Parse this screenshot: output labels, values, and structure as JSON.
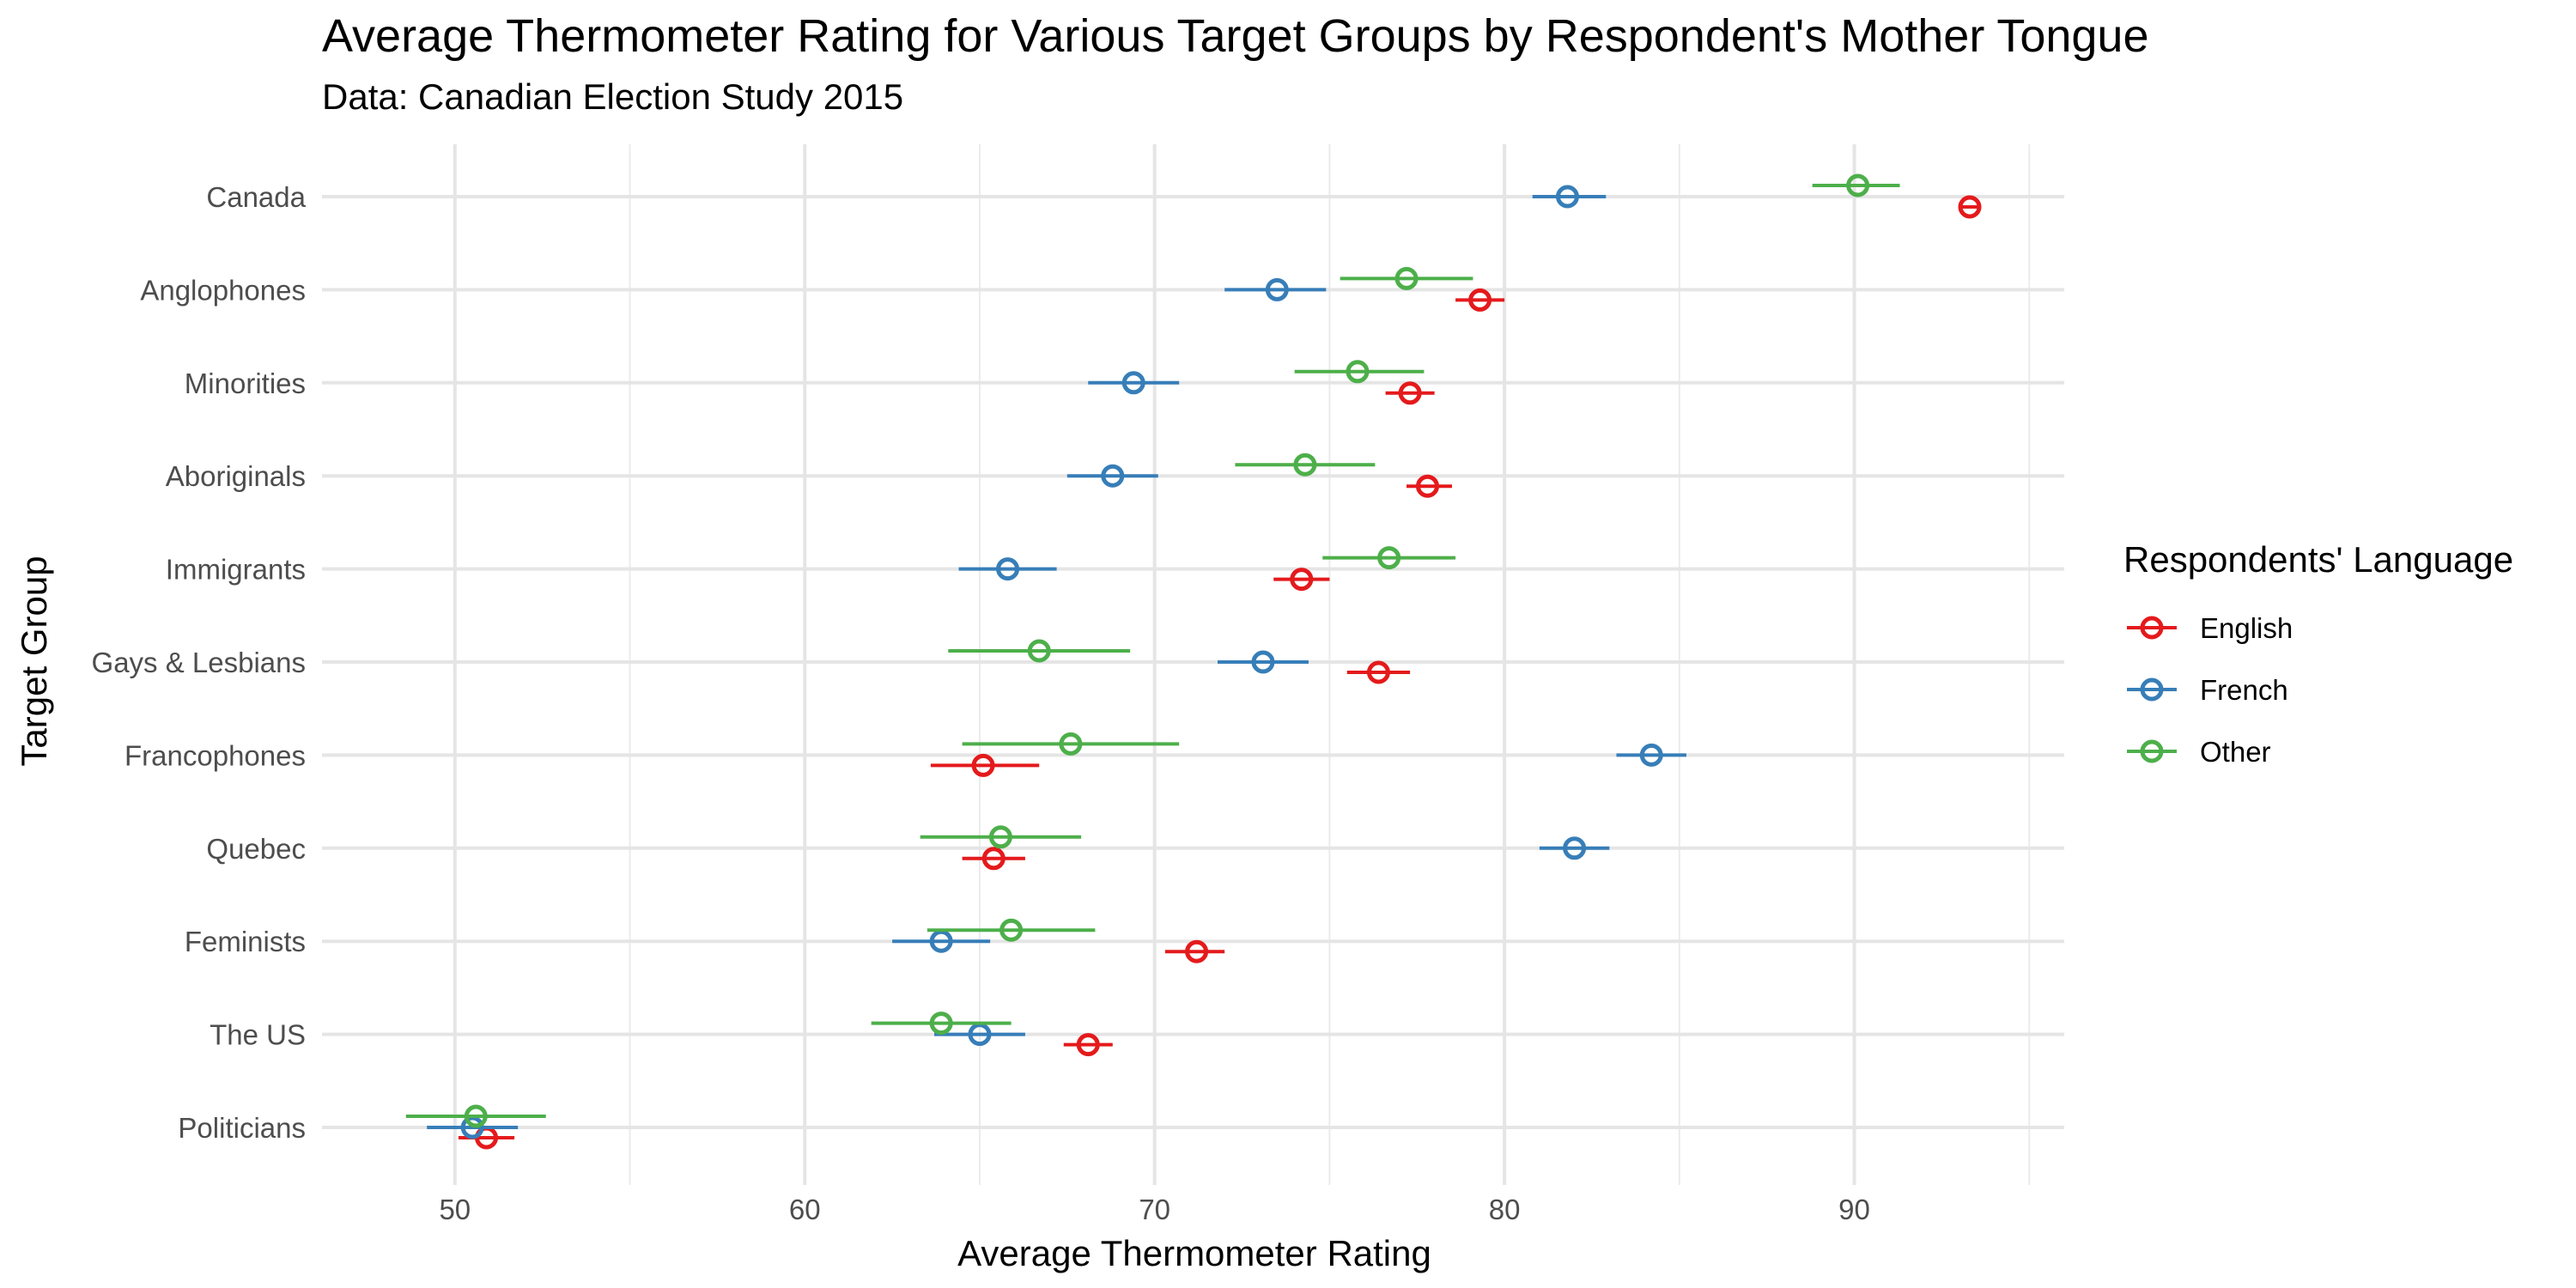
{
  "chart_data": {
    "type": "scatter",
    "title": "Average Thermometer Rating for Various Target Groups by Respondent's Mother Tongue",
    "subtitle": "Data: Canadian Election Study 2015",
    "xlabel": "Average Thermometer Rating",
    "ylabel": "Target Group",
    "xlim": [
      46.2,
      96
    ],
    "x_ticks": [
      50,
      60,
      70,
      80,
      90
    ],
    "categories": [
      "Canada",
      "Anglophones",
      "Minorities",
      "Aboriginals",
      "Immigrants",
      "Gays & Lesbians",
      "Francophones",
      "Quebec",
      "Feminists",
      "The US",
      "Politicians"
    ],
    "grid": true,
    "legend": {
      "title": "Respondents' Language",
      "position": "right"
    },
    "series": [
      {
        "name": "English",
        "color": "#e41a1c",
        "values": [
          93.3,
          79.3,
          77.3,
          77.8,
          74.2,
          76.4,
          65.1,
          65.4,
          71.2,
          68.1,
          50.9
        ],
        "ci_low": [
          93.0,
          78.6,
          76.6,
          77.2,
          73.4,
          75.5,
          63.6,
          64.5,
          70.3,
          67.4,
          50.1
        ],
        "ci_high": [
          93.6,
          80.0,
          78.0,
          78.5,
          75.0,
          77.3,
          66.7,
          66.3,
          72.0,
          68.8,
          51.7
        ]
      },
      {
        "name": "French",
        "color": "#377eb8",
        "values": [
          81.8,
          73.5,
          69.4,
          68.8,
          65.8,
          73.1,
          84.2,
          82.0,
          63.9,
          65.0,
          50.5
        ],
        "ci_low": [
          80.8,
          72.0,
          68.1,
          67.5,
          64.4,
          71.8,
          83.2,
          81.0,
          62.5,
          63.7,
          49.2
        ],
        "ci_high": [
          82.9,
          74.9,
          70.7,
          70.1,
          67.2,
          74.4,
          85.2,
          83.0,
          65.3,
          66.3,
          51.8
        ]
      },
      {
        "name": "Other",
        "color": "#4daf4a",
        "values": [
          90.1,
          77.2,
          75.8,
          74.3,
          76.7,
          66.7,
          67.6,
          65.6,
          65.9,
          63.9,
          50.6
        ],
        "ci_low": [
          88.8,
          75.3,
          74.0,
          72.3,
          74.8,
          64.1,
          64.5,
          63.3,
          63.5,
          61.9,
          48.6
        ],
        "ci_high": [
          91.3,
          79.1,
          77.7,
          76.3,
          78.6,
          69.3,
          70.7,
          67.9,
          68.3,
          65.9,
          52.6
        ]
      }
    ]
  }
}
